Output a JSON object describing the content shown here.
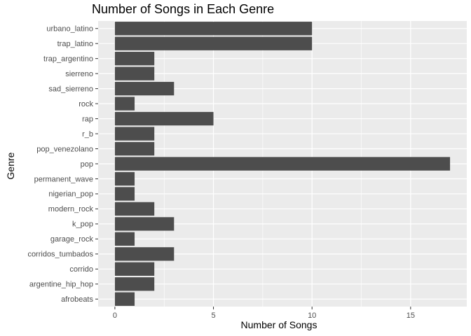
{
  "chart_data": {
    "type": "bar",
    "orientation": "horizontal",
    "title": "Number of Songs in Each Genre",
    "xlabel": "Number of Songs",
    "ylabel": "Genre",
    "categories": [
      "afrobeats",
      "argentine_hip_hop",
      "corrido",
      "corridos_tumbados",
      "garage_rock",
      "k_pop",
      "modern_rock",
      "nigerian_pop",
      "permanent_wave",
      "pop",
      "pop_venezolano",
      "r_b",
      "rap",
      "rock",
      "sad_sierreno",
      "sierreno",
      "trap_argentino",
      "trap_latino",
      "urbano_latino"
    ],
    "values": [
      1,
      2,
      2,
      3,
      1,
      3,
      2,
      1,
      1,
      17,
      2,
      2,
      5,
      1,
      3,
      2,
      2,
      10,
      10
    ],
    "xlim": [
      -0.85,
      17.85
    ],
    "xticks": [
      0,
      5,
      10,
      15
    ],
    "grid": true,
    "legend": "none",
    "colors": {
      "bar": "#4d4d4d",
      "panel": "#ebebeb",
      "grid": "#ffffff",
      "text": "#4d4d4d"
    }
  }
}
